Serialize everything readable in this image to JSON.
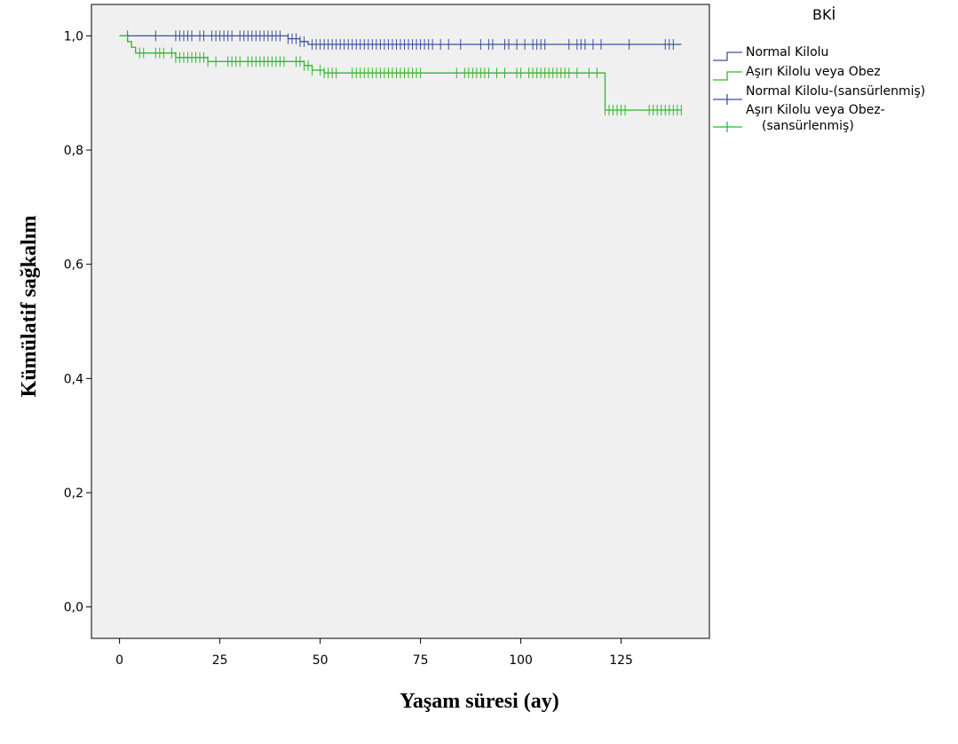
{
  "chart_data": {
    "type": "line",
    "xlabel": "Yaşam süresi (ay)",
    "ylabel": "Kümülatif sağkalım",
    "xlim": [
      -7,
      147
    ],
    "ylim": [
      -0.055,
      1.055
    ],
    "x_ticks": [
      0,
      25,
      50,
      75,
      100,
      125
    ],
    "x_tick_labels": [
      "0",
      "25",
      "50",
      "75",
      "100",
      "125"
    ],
    "y_ticks": [
      0,
      0.2,
      0.4,
      0.6,
      0.8,
      1.0
    ],
    "y_tick_labels": [
      "0,0",
      "0,2",
      "0,4",
      "0,6",
      "0,8",
      "1,0"
    ],
    "grid": false,
    "background": "#f0f0f0",
    "legend": {
      "title": "BKİ",
      "position": "right",
      "entries": [
        {
          "label": "Normal Kilolu",
          "color": "#3a4fa3",
          "kind": "step"
        },
        {
          "label": "Aşırı Kilolu veya Obez",
          "color": "#2eb82e",
          "kind": "step"
        },
        {
          "label": "Normal Kilolu-(sansürlenmiş)",
          "color": "#3a4fa3",
          "kind": "censor"
        },
        {
          "label": "Aşırı Kilolu veya Obez-",
          "label_line2": "(sansürlenmiş)",
          "color": "#2eb82e",
          "kind": "censor"
        }
      ]
    },
    "series": [
      {
        "name": "Normal Kilolu",
        "color": "#3a4fa3",
        "steps": [
          [
            0,
            1.0
          ],
          [
            42,
            0.995
          ],
          [
            45,
            0.99
          ],
          [
            47,
            0.985
          ],
          [
            140,
            0.985
          ]
        ],
        "censored": [
          2,
          9,
          14,
          15,
          16,
          17,
          18,
          20,
          21,
          23,
          24,
          25,
          26,
          27,
          28,
          30,
          31,
          32,
          33,
          34,
          35,
          36,
          37,
          38,
          39,
          40,
          42,
          43,
          44,
          45,
          46,
          48,
          49,
          50,
          51,
          52,
          53,
          54,
          55,
          56,
          57,
          58,
          59,
          60,
          61,
          62,
          63,
          64,
          65,
          66,
          67,
          68,
          69,
          70,
          71,
          72,
          73,
          74,
          75,
          76,
          77,
          78,
          80,
          82,
          85,
          90,
          92,
          93,
          96,
          97,
          99,
          101,
          103,
          104,
          105,
          106,
          112,
          114,
          115,
          116,
          118,
          120,
          127,
          136,
          137,
          138
        ]
      },
      {
        "name": "Aşırı Kilolu veya Obez",
        "color": "#2eb82e",
        "steps": [
          [
            0,
            1.0
          ],
          [
            2,
            0.99
          ],
          [
            3,
            0.98
          ],
          [
            4,
            0.97
          ],
          [
            14,
            0.962
          ],
          [
            22,
            0.955
          ],
          [
            46,
            0.948
          ],
          [
            48,
            0.94
          ],
          [
            51,
            0.935
          ],
          [
            121,
            0.935
          ],
          [
            121,
            0.87
          ],
          [
            140,
            0.87
          ]
        ],
        "censored": [
          5,
          6,
          9,
          10,
          11,
          13,
          14,
          15,
          16,
          17,
          18,
          19,
          20,
          21,
          22,
          24,
          27,
          28,
          29,
          30,
          32,
          33,
          34,
          35,
          36,
          37,
          38,
          39,
          40,
          41,
          44,
          45,
          46,
          47,
          48,
          50,
          51,
          52,
          53,
          54,
          58,
          59,
          60,
          61,
          62,
          63,
          64,
          65,
          66,
          67,
          68,
          69,
          70,
          71,
          72,
          73,
          74,
          75,
          84,
          86,
          87,
          88,
          89,
          90,
          91,
          92,
          94,
          96,
          99,
          100,
          102,
          103,
          104,
          105,
          106,
          107,
          108,
          109,
          110,
          111,
          112,
          114,
          117,
          119,
          121,
          122,
          123,
          124,
          125,
          126,
          132,
          133,
          134,
          135,
          136,
          137,
          138,
          139,
          140
        ]
      }
    ]
  }
}
